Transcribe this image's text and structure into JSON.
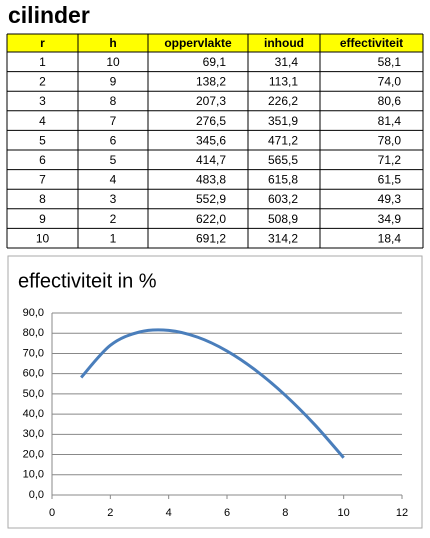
{
  "title": "cilinder",
  "table": {
    "header": [
      "r",
      "h",
      "oppervlakte",
      "inhoud",
      "effectiviteit"
    ],
    "rows": [
      [
        "1",
        "10",
        "69,1",
        "31,4",
        "58,1"
      ],
      [
        "2",
        "9",
        "138,2",
        "113,1",
        "74,0"
      ],
      [
        "3",
        "8",
        "207,3",
        "226,2",
        "80,6"
      ],
      [
        "4",
        "7",
        "276,5",
        "351,9",
        "81,4"
      ],
      [
        "5",
        "6",
        "345,6",
        "471,2",
        "78,0"
      ],
      [
        "6",
        "5",
        "414,7",
        "565,5",
        "71,2"
      ],
      [
        "7",
        "4",
        "483,8",
        "615,8",
        "61,5"
      ],
      [
        "8",
        "3",
        "552,9",
        "603,2",
        "49,3"
      ],
      [
        "9",
        "2",
        "622,0",
        "508,9",
        "34,9"
      ],
      [
        "10",
        "1",
        "691,2",
        "314,2",
        "18,4"
      ]
    ]
  },
  "chart_data": {
    "type": "line",
    "title": "effectiviteit in %",
    "x": [
      1,
      2,
      3,
      4,
      5,
      6,
      7,
      8,
      9,
      10
    ],
    "series": [
      {
        "name": "effectiviteit",
        "color": "#4a7ebb",
        "values": [
          58.1,
          74.0,
          80.6,
          81.4,
          78.0,
          71.2,
          61.5,
          49.3,
          34.9,
          18.4
        ]
      }
    ],
    "xlim": [
      0,
      12
    ],
    "xticks": [
      0,
      2,
      4,
      6,
      8,
      10,
      12
    ],
    "ylim": [
      0,
      90
    ],
    "yticks": [
      {
        "value": 0,
        "label": "0,0"
      },
      {
        "value": 10,
        "label": "10,0"
      },
      {
        "value": 20,
        "label": "20,0"
      },
      {
        "value": 30,
        "label": "30,0"
      },
      {
        "value": 40,
        "label": "40,0"
      },
      {
        "value": 50,
        "label": "50,0"
      },
      {
        "value": 60,
        "label": "60,0"
      },
      {
        "value": 70,
        "label": "70,0"
      },
      {
        "value": 80,
        "label": "80,0"
      },
      {
        "value": 90,
        "label": "90,0"
      }
    ],
    "grid": true,
    "smooth": true
  }
}
